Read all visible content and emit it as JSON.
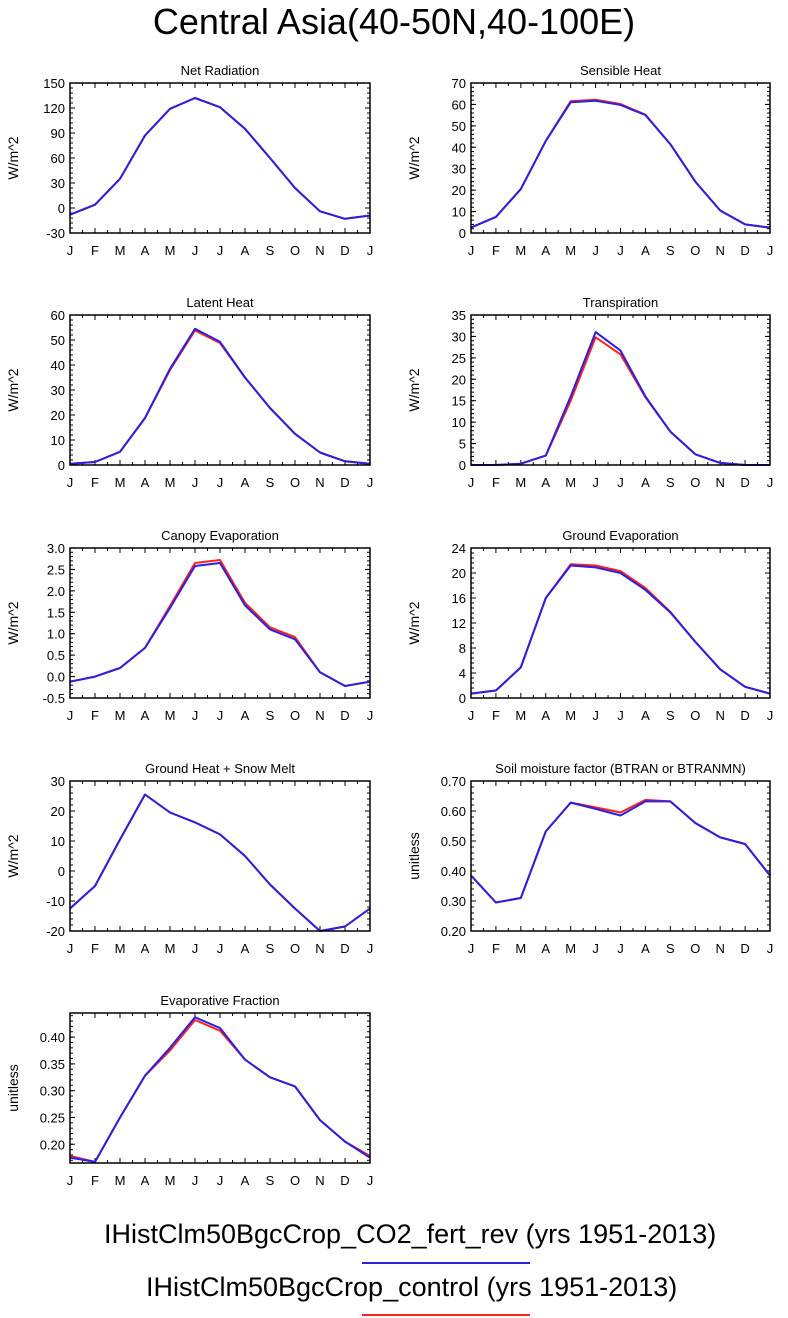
{
  "page_title": "Central Asia(40-50N,40-100E)",
  "legend": [
    {
      "label": "IHistClm50BgcCrop_CO2_fert_rev (yrs 1951-2013)",
      "color": "#2b1fe0"
    },
    {
      "label": "IHistClm50BgcCrop_control (yrs 1951-2013)",
      "color": "#ff2020"
    }
  ],
  "chart_data": [
    {
      "type": "line",
      "title": "Net Radiation",
      "ylabel": "W/m^2",
      "categories": [
        "J",
        "F",
        "M",
        "A",
        "M",
        "J",
        "J",
        "A",
        "S",
        "O",
        "N",
        "D",
        "J"
      ],
      "ylim": [
        -30,
        150
      ],
      "yticks": [
        -30,
        0,
        30,
        60,
        90,
        120,
        150
      ],
      "yticklabels": [
        "-30",
        "0",
        "30",
        "60",
        "90",
        "120",
        "150"
      ],
      "series": [
        {
          "name": "IHistClm50BgcCrop_control (yrs 1951-2013)",
          "color": "#ff2020",
          "values": [
            -8,
            4,
            35,
            87,
            119,
            132,
            121,
            95,
            60,
            24,
            -4,
            -13,
            -9
          ]
        },
        {
          "name": "IHistClm50BgcCrop_CO2_fert_rev (yrs 1951-2013)",
          "color": "#2b1fe0",
          "values": [
            -8,
            4,
            35,
            87,
            119,
            132,
            121,
            95,
            60,
            24,
            -4,
            -13,
            -9
          ]
        }
      ]
    },
    {
      "type": "line",
      "title": "Sensible Heat",
      "ylabel": "W/m^2",
      "categories": [
        "J",
        "F",
        "M",
        "A",
        "M",
        "J",
        "J",
        "A",
        "S",
        "O",
        "N",
        "D",
        "J"
      ],
      "ylim": [
        0,
        70
      ],
      "yticks": [
        0,
        10,
        20,
        30,
        40,
        50,
        60,
        70
      ],
      "yticklabels": [
        "0",
        "10",
        "20",
        "30",
        "40",
        "50",
        "60",
        "70"
      ],
      "series": [
        {
          "name": "IHistClm50BgcCrop_control (yrs 1951-2013)",
          "color": "#ff2020",
          "values": [
            2.5,
            7.5,
            20.5,
            43,
            61.5,
            62.2,
            60.2,
            55.2,
            41.5,
            24,
            10.5,
            4,
            2.5
          ]
        },
        {
          "name": "IHistClm50BgcCrop_CO2_fert_rev (yrs 1951-2013)",
          "color": "#2b1fe0",
          "values": [
            2.5,
            7.5,
            20.5,
            43,
            61,
            61.7,
            59.8,
            55,
            41.5,
            24,
            10.5,
            4,
            2.5
          ]
        }
      ]
    },
    {
      "type": "line",
      "title": "Latent Heat",
      "ylabel": "W/m^2",
      "categories": [
        "J",
        "F",
        "M",
        "A",
        "M",
        "J",
        "J",
        "A",
        "S",
        "O",
        "N",
        "D",
        "J"
      ],
      "ylim": [
        0,
        60
      ],
      "yticks": [
        0,
        10,
        20,
        30,
        40,
        50,
        60
      ],
      "yticklabels": [
        "0",
        "10",
        "20",
        "30",
        "40",
        "50",
        "60"
      ],
      "series": [
        {
          "name": "IHistClm50BgcCrop_control (yrs 1951-2013)",
          "color": "#ff2020",
          "values": [
            0.5,
            1.2,
            5.3,
            18.8,
            38,
            53.8,
            48.8,
            35,
            22.8,
            12.5,
            5,
            1.5,
            0.5
          ]
        },
        {
          "name": "IHistClm50BgcCrop_CO2_fert_rev (yrs 1951-2013)",
          "color": "#2b1fe0",
          "values": [
            0.5,
            1.2,
            5.3,
            18.8,
            38.5,
            54.5,
            49.3,
            35,
            22.8,
            12.5,
            5,
            1.5,
            0.5
          ]
        }
      ]
    },
    {
      "type": "line",
      "title": "Transpiration",
      "ylabel": "W/m^2",
      "categories": [
        "J",
        "F",
        "M",
        "A",
        "M",
        "J",
        "J",
        "A",
        "S",
        "O",
        "N",
        "D",
        "J"
      ],
      "ylim": [
        0,
        35
      ],
      "yticks": [
        0,
        5,
        10,
        15,
        20,
        25,
        30,
        35
      ],
      "yticklabels": [
        "0",
        "5",
        "10",
        "15",
        "20",
        "25",
        "30",
        "35"
      ],
      "series": [
        {
          "name": "IHistClm50BgcCrop_control (yrs 1951-2013)",
          "color": "#ff2020",
          "values": [
            0,
            0,
            0.3,
            2.2,
            15,
            29.8,
            25.8,
            15.8,
            7.8,
            2.5,
            0.5,
            0,
            0
          ]
        },
        {
          "name": "IHistClm50BgcCrop_CO2_fert_rev (yrs 1951-2013)",
          "color": "#2b1fe0",
          "values": [
            0,
            0,
            0.3,
            2.2,
            16,
            31,
            26.7,
            16,
            7.8,
            2.5,
            0.5,
            0,
            0
          ]
        }
      ]
    },
    {
      "type": "line",
      "title": "Canopy Evaporation",
      "ylabel": "W/m^2",
      "categories": [
        "J",
        "F",
        "M",
        "A",
        "M",
        "J",
        "J",
        "A",
        "S",
        "O",
        "N",
        "D",
        "J"
      ],
      "ylim": [
        -0.5,
        3.0
      ],
      "yticks": [
        -0.5,
        0,
        0.5,
        1.0,
        1.5,
        2.0,
        2.5,
        3.0
      ],
      "yticklabels": [
        "-0.5",
        "0.0",
        "0.5",
        "1.0",
        "1.5",
        "2.0",
        "2.5",
        "3.0"
      ],
      "series": [
        {
          "name": "IHistClm50BgcCrop_control (yrs 1951-2013)",
          "color": "#ff2020",
          "values": [
            -0.12,
            0,
            0.2,
            0.67,
            1.65,
            2.65,
            2.72,
            1.72,
            1.15,
            0.92,
            0.1,
            -0.22,
            -0.12
          ]
        },
        {
          "name": "IHistClm50BgcCrop_CO2_fert_rev (yrs 1951-2013)",
          "color": "#2b1fe0",
          "values": [
            -0.12,
            0,
            0.2,
            0.67,
            1.6,
            2.58,
            2.65,
            1.66,
            1.1,
            0.87,
            0.1,
            -0.22,
            -0.12
          ]
        }
      ]
    },
    {
      "type": "line",
      "title": "Ground Evaporation",
      "ylabel": "W/m^2",
      "categories": [
        "J",
        "F",
        "M",
        "A",
        "M",
        "J",
        "J",
        "A",
        "S",
        "O",
        "N",
        "D",
        "J"
      ],
      "ylim": [
        0,
        24
      ],
      "yticks": [
        0,
        4,
        8,
        12,
        16,
        20,
        24
      ],
      "yticklabels": [
        "0",
        "4",
        "8",
        "12",
        "16",
        "20",
        "24"
      ],
      "series": [
        {
          "name": "IHistClm50BgcCrop_control (yrs 1951-2013)",
          "color": "#ff2020",
          "values": [
            0.7,
            1.2,
            4.9,
            16,
            21.4,
            21.2,
            20.3,
            17.6,
            13.8,
            9,
            4.6,
            1.8,
            0.7
          ]
        },
        {
          "name": "IHistClm50BgcCrop_CO2_fert_rev (yrs 1951-2013)",
          "color": "#2b1fe0",
          "values": [
            0.7,
            1.2,
            4.9,
            16,
            21.2,
            20.9,
            20,
            17.3,
            13.7,
            9,
            4.6,
            1.8,
            0.7
          ]
        }
      ]
    },
    {
      "type": "line",
      "title": "Ground Heat + Snow Melt",
      "ylabel": "W/m^2",
      "categories": [
        "J",
        "F",
        "M",
        "A",
        "M",
        "J",
        "J",
        "A",
        "S",
        "O",
        "N",
        "D",
        "J"
      ],
      "ylim": [
        -20,
        30
      ],
      "yticks": [
        -20,
        -10,
        0,
        10,
        20,
        30
      ],
      "yticklabels": [
        "-20",
        "-10",
        "0",
        "10",
        "20",
        "30"
      ],
      "series": [
        {
          "name": "IHistClm50BgcCrop_control (yrs 1951-2013)",
          "color": "#ff2020",
          "values": [
            -12.5,
            -5,
            10.5,
            25.5,
            19.5,
            16.2,
            12.2,
            5,
            -4.5,
            -12.5,
            -20,
            -18.5,
            -12.5
          ]
        },
        {
          "name": "IHistClm50BgcCrop_CO2_fert_rev (yrs 1951-2013)",
          "color": "#2b1fe0",
          "values": [
            -12.5,
            -5,
            10.5,
            25.5,
            19.5,
            16.2,
            12.2,
            5,
            -4.5,
            -12.5,
            -20,
            -18.5,
            -12.5
          ]
        }
      ]
    },
    {
      "type": "line",
      "title": "Soil moisture factor (BTRAN or BTRANMN)",
      "ylabel": "unitless",
      "categories": [
        "J",
        "F",
        "M",
        "A",
        "M",
        "J",
        "J",
        "A",
        "S",
        "O",
        "N",
        "D",
        "J"
      ],
      "ylim": [
        0.2,
        0.7
      ],
      "yticks": [
        0.2,
        0.3,
        0.4,
        0.5,
        0.6,
        0.7
      ],
      "yticklabels": [
        "0.20",
        "0.30",
        "0.40",
        "0.50",
        "0.60",
        "0.70"
      ],
      "series": [
        {
          "name": "IHistClm50BgcCrop_control (yrs 1951-2013)",
          "color": "#ff2020",
          "values": [
            0.385,
            0.295,
            0.31,
            0.532,
            0.628,
            0.612,
            0.595,
            0.637,
            0.632,
            0.56,
            0.512,
            0.49,
            0.385
          ]
        },
        {
          "name": "IHistClm50BgcCrop_CO2_fert_rev (yrs 1951-2013)",
          "color": "#2b1fe0",
          "values": [
            0.385,
            0.295,
            0.31,
            0.532,
            0.628,
            0.607,
            0.585,
            0.632,
            0.632,
            0.56,
            0.512,
            0.49,
            0.385
          ]
        }
      ]
    },
    {
      "type": "line",
      "title": "Evaporative Fraction",
      "ylabel": "unitless",
      "categories": [
        "J",
        "F",
        "M",
        "A",
        "M",
        "J",
        "J",
        "A",
        "S",
        "O",
        "N",
        "D",
        "J"
      ],
      "ylim": [
        0.165,
        0.445
      ],
      "yticks": [
        0.2,
        0.25,
        0.3,
        0.35,
        0.4
      ],
      "yticklabels": [
        "0.20",
        "0.25",
        "0.30",
        "0.35",
        "0.40"
      ],
      "series": [
        {
          "name": "IHistClm50BgcCrop_control (yrs 1951-2013)",
          "color": "#ff2020",
          "values": [
            0.178,
            0.167,
            0.25,
            0.328,
            0.375,
            0.432,
            0.412,
            0.358,
            0.325,
            0.308,
            0.245,
            0.205,
            0.178
          ]
        },
        {
          "name": "IHistClm50BgcCrop_CO2_fert_rev (yrs 1951-2013)",
          "color": "#2b1fe0",
          "values": [
            0.175,
            0.167,
            0.25,
            0.328,
            0.38,
            0.437,
            0.417,
            0.358,
            0.325,
            0.308,
            0.245,
            0.205,
            0.175
          ]
        }
      ]
    }
  ]
}
